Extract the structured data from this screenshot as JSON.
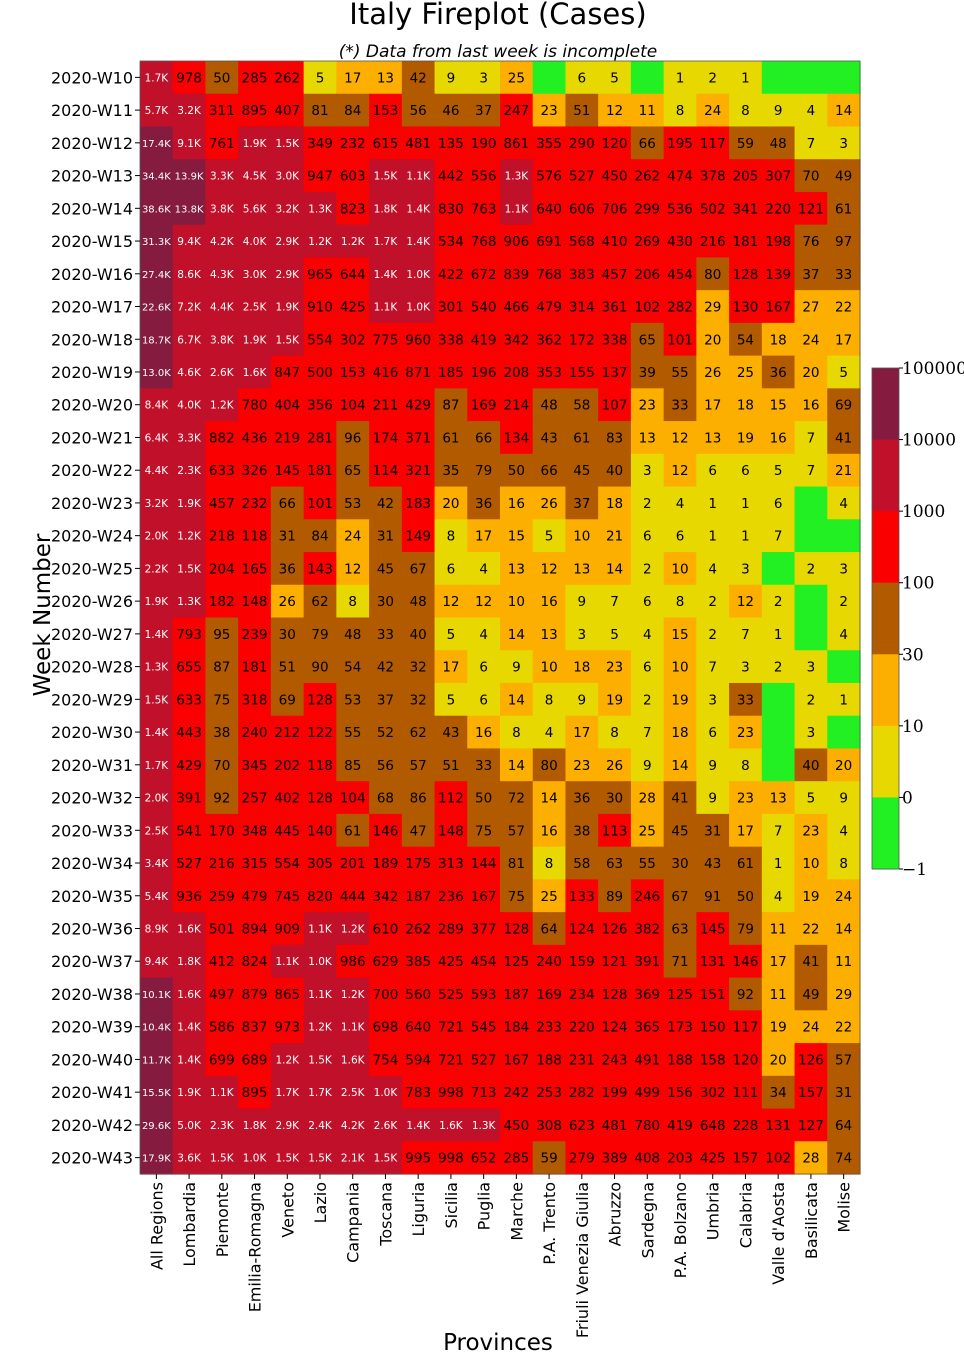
{
  "chart_data": {
    "type": "heatmap",
    "title": "Italy Fireplot (Cases)",
    "subtitle": "(*) Data from last week is incomplete",
    "xlabel": "Provinces",
    "ylabel": "Week Number",
    "columns": [
      "All Regions",
      "Lombardia",
      "Piemonte",
      "Emilia-Romagna",
      "Veneto",
      "Lazio",
      "Campania",
      "Toscana",
      "Liguria",
      "Sicilia",
      "Puglia",
      "Marche",
      "P.A. Trento",
      "Friuli Venezia Giulia",
      "Abruzzo",
      "Sardegna",
      "P.A. Bolzano",
      "Umbria",
      "Calabria",
      "Valle d'Aosta",
      "Basilicata",
      "Molise"
    ],
    "rows": [
      "2020-W10",
      "2020-W11",
      "2020-W12",
      "2020-W13",
      "2020-W14",
      "2020-W15",
      "2020-W16",
      "2020-W17",
      "2020-W18",
      "2020-W19",
      "2020-W20",
      "2020-W21",
      "2020-W22",
      "2020-W23",
      "2020-W24",
      "2020-W25",
      "2020-W26",
      "2020-W27",
      "2020-W28",
      "2020-W29",
      "2020-W30",
      "2020-W31",
      "2020-W32",
      "2020-W33",
      "2020-W34",
      "2020-W35",
      "2020-W36",
      "2020-W37",
      "2020-W38",
      "2020-W39",
      "2020-W40",
      "2020-W41",
      "2020-W42",
      "2020-W43"
    ],
    "cells": [
      [
        "1.7K",
        "978",
        "50",
        "285",
        "262",
        "5",
        "17",
        "13",
        "42",
        "9",
        "3",
        "25",
        "",
        "6",
        "5",
        "",
        "1",
        "2",
        "1",
        "",
        "",
        ""
      ],
      [
        "5.7K",
        "3.2K",
        "311",
        "895",
        "407",
        "81",
        "84",
        "153",
        "56",
        "46",
        "37",
        "247",
        "23",
        "51",
        "12",
        "11",
        "8",
        "24",
        "8",
        "9",
        "4",
        "14"
      ],
      [
        "17.4K",
        "9.1K",
        "761",
        "1.9K",
        "1.5K",
        "349",
        "232",
        "615",
        "481",
        "135",
        "190",
        "861",
        "355",
        "290",
        "120",
        "66",
        "195",
        "117",
        "59",
        "48",
        "7",
        "3"
      ],
      [
        "34.4K",
        "13.9K",
        "3.3K",
        "4.5K",
        "3.0K",
        "947",
        "603",
        "1.5K",
        "1.1K",
        "442",
        "556",
        "1.3K",
        "576",
        "527",
        "450",
        "262",
        "474",
        "378",
        "205",
        "307",
        "70",
        "49"
      ],
      [
        "38.6K",
        "13.8K",
        "3.8K",
        "5.6K",
        "3.2K",
        "1.3K",
        "823",
        "1.8K",
        "1.4K",
        "830",
        "763",
        "1.1K",
        "640",
        "606",
        "706",
        "299",
        "536",
        "502",
        "341",
        "220",
        "121",
        "61"
      ],
      [
        "31.3K",
        "9.4K",
        "4.2K",
        "4.0K",
        "2.9K",
        "1.2K",
        "1.2K",
        "1.7K",
        "1.4K",
        "534",
        "768",
        "906",
        "691",
        "568",
        "410",
        "269",
        "430",
        "216",
        "181",
        "198",
        "76",
        "97"
      ],
      [
        "27.4K",
        "8.6K",
        "4.3K",
        "3.0K",
        "2.9K",
        "965",
        "644",
        "1.4K",
        "1.0K",
        "422",
        "672",
        "839",
        "768",
        "383",
        "457",
        "206",
        "454",
        "80",
        "128",
        "139",
        "37",
        "33"
      ],
      [
        "22.6K",
        "7.2K",
        "4.4K",
        "2.5K",
        "1.9K",
        "910",
        "425",
        "1.1K",
        "1.0K",
        "301",
        "540",
        "466",
        "479",
        "314",
        "361",
        "102",
        "282",
        "29",
        "130",
        "167",
        "27",
        "22"
      ],
      [
        "18.7K",
        "6.7K",
        "3.8K",
        "1.9K",
        "1.5K",
        "554",
        "302",
        "775",
        "960",
        "338",
        "419",
        "342",
        "362",
        "172",
        "338",
        "65",
        "101",
        "20",
        "54",
        "18",
        "24",
        "17"
      ],
      [
        "13.0K",
        "4.6K",
        "2.6K",
        "1.6K",
        "847",
        "500",
        "153",
        "416",
        "871",
        "185",
        "196",
        "208",
        "353",
        "155",
        "137",
        "39",
        "55",
        "26",
        "25",
        "36",
        "20",
        "5"
      ],
      [
        "8.4K",
        "4.0K",
        "1.2K",
        "780",
        "404",
        "356",
        "104",
        "211",
        "429",
        "87",
        "169",
        "214",
        "48",
        "58",
        "107",
        "23",
        "33",
        "17",
        "18",
        "15",
        "16",
        "69"
      ],
      [
        "6.4K",
        "3.3K",
        "882",
        "436",
        "219",
        "281",
        "96",
        "174",
        "371",
        "61",
        "66",
        "134",
        "43",
        "61",
        "83",
        "13",
        "12",
        "13",
        "19",
        "16",
        "7",
        "41"
      ],
      [
        "4.4K",
        "2.3K",
        "633",
        "326",
        "145",
        "181",
        "65",
        "114",
        "321",
        "35",
        "79",
        "50",
        "66",
        "45",
        "40",
        "3",
        "12",
        "6",
        "6",
        "5",
        "7",
        "21"
      ],
      [
        "3.2K",
        "1.9K",
        "457",
        "232",
        "66",
        "101",
        "53",
        "42",
        "183",
        "20",
        "36",
        "16",
        "26",
        "37",
        "18",
        "2",
        "4",
        "1",
        "1",
        "6",
        "",
        "4"
      ],
      [
        "2.0K",
        "1.2K",
        "218",
        "118",
        "31",
        "84",
        "24",
        "31",
        "149",
        "8",
        "17",
        "15",
        "5",
        "10",
        "21",
        "6",
        "6",
        "1",
        "1",
        "7",
        "",
        ""
      ],
      [
        "2.2K",
        "1.5K",
        "204",
        "165",
        "36",
        "143",
        "12",
        "45",
        "67",
        "6",
        "4",
        "13",
        "12",
        "13",
        "14",
        "2",
        "10",
        "4",
        "3",
        "",
        "2",
        "3"
      ],
      [
        "1.9K",
        "1.3K",
        "182",
        "148",
        "26",
        "62",
        "8",
        "30",
        "48",
        "12",
        "12",
        "10",
        "16",
        "9",
        "7",
        "6",
        "8",
        "2",
        "12",
        "2",
        "",
        "2"
      ],
      [
        "1.4K",
        "793",
        "95",
        "239",
        "30",
        "79",
        "48",
        "33",
        "40",
        "5",
        "4",
        "14",
        "13",
        "3",
        "5",
        "4",
        "15",
        "2",
        "7",
        "1",
        "",
        "4"
      ],
      [
        "1.3K",
        "655",
        "87",
        "181",
        "51",
        "90",
        "54",
        "42",
        "32",
        "17",
        "6",
        "9",
        "10",
        "18",
        "23",
        "6",
        "10",
        "7",
        "3",
        "2",
        "3",
        ""
      ],
      [
        "1.5K",
        "633",
        "75",
        "318",
        "69",
        "128",
        "53",
        "37",
        "32",
        "5",
        "6",
        "14",
        "8",
        "9",
        "19",
        "2",
        "19",
        "3",
        "33",
        "",
        "2",
        "1"
      ],
      [
        "1.4K",
        "443",
        "38",
        "240",
        "212",
        "122",
        "55",
        "52",
        "62",
        "43",
        "16",
        "8",
        "4",
        "17",
        "8",
        "7",
        "18",
        "6",
        "23",
        "",
        "3",
        ""
      ],
      [
        "1.7K",
        "429",
        "70",
        "345",
        "202",
        "118",
        "85",
        "56",
        "57",
        "51",
        "33",
        "14",
        "80",
        "23",
        "26",
        "9",
        "14",
        "9",
        "8",
        "",
        "40",
        "20"
      ],
      [
        "2.0K",
        "391",
        "92",
        "257",
        "402",
        "128",
        "104",
        "68",
        "86",
        "112",
        "50",
        "72",
        "14",
        "36",
        "30",
        "28",
        "41",
        "9",
        "23",
        "13",
        "5",
        "9"
      ],
      [
        "2.5K",
        "541",
        "170",
        "348",
        "445",
        "140",
        "61",
        "146",
        "47",
        "148",
        "75",
        "57",
        "16",
        "38",
        "113",
        "25",
        "45",
        "31",
        "17",
        "7",
        "23",
        "4"
      ],
      [
        "3.4K",
        "527",
        "216",
        "315",
        "554",
        "305",
        "201",
        "189",
        "175",
        "313",
        "144",
        "81",
        "8",
        "58",
        "63",
        "55",
        "30",
        "43",
        "61",
        "1",
        "10",
        "8"
      ],
      [
        "5.4K",
        "936",
        "259",
        "479",
        "745",
        "820",
        "444",
        "342",
        "187",
        "236",
        "167",
        "75",
        "25",
        "133",
        "89",
        "246",
        "67",
        "91",
        "50",
        "4",
        "19",
        "24"
      ],
      [
        "8.9K",
        "1.6K",
        "501",
        "894",
        "909",
        "1.1K",
        "1.2K",
        "610",
        "262",
        "289",
        "377",
        "128",
        "64",
        "124",
        "126",
        "382",
        "63",
        "145",
        "79",
        "11",
        "22",
        "14"
      ],
      [
        "9.4K",
        "1.8K",
        "412",
        "824",
        "1.1K",
        "1.0K",
        "986",
        "629",
        "385",
        "425",
        "454",
        "125",
        "240",
        "159",
        "121",
        "391",
        "71",
        "131",
        "146",
        "17",
        "41",
        "11"
      ],
      [
        "10.1K",
        "1.6K",
        "497",
        "879",
        "865",
        "1.1K",
        "1.2K",
        "700",
        "560",
        "525",
        "593",
        "187",
        "169",
        "234",
        "128",
        "369",
        "125",
        "151",
        "92",
        "11",
        "49",
        "29"
      ],
      [
        "10.4K",
        "1.4K",
        "586",
        "837",
        "973",
        "1.2K",
        "1.1K",
        "698",
        "640",
        "721",
        "545",
        "184",
        "233",
        "220",
        "124",
        "365",
        "173",
        "150",
        "117",
        "19",
        "24",
        "22"
      ],
      [
        "11.7K",
        "1.4K",
        "699",
        "689",
        "1.2K",
        "1.5K",
        "1.6K",
        "754",
        "594",
        "721",
        "527",
        "167",
        "188",
        "231",
        "243",
        "491",
        "188",
        "158",
        "120",
        "20",
        "126",
        "57"
      ],
      [
        "15.5K",
        "1.9K",
        "1.1K",
        "895",
        "1.7K",
        "1.7K",
        "2.5K",
        "1.0K",
        "783",
        "998",
        "713",
        "242",
        "253",
        "282",
        "199",
        "499",
        "156",
        "302",
        "111",
        "34",
        "157",
        "31"
      ],
      [
        "29.6K",
        "5.0K",
        "2.3K",
        "1.8K",
        "2.9K",
        "2.4K",
        "4.2K",
        "2.6K",
        "1.4K",
        "1.6K",
        "1.3K",
        "450",
        "308",
        "623",
        "481",
        "780",
        "419",
        "648",
        "228",
        "131",
        "127",
        "64"
      ],
      [
        "17.9K",
        "3.6K",
        "1.5K",
        "1.0K",
        "1.5K",
        "1.5K",
        "2.1K",
        "1.5K",
        "995",
        "998",
        "652",
        "285",
        "59",
        "279",
        "389",
        "408",
        "203",
        "425",
        "157",
        "102",
        "28",
        "74"
      ]
    ],
    "colorbar": {
      "scale": "symlog",
      "ticks": [
        "100000",
        "10000",
        "1000",
        "100",
        "30",
        "10",
        "0",
        "−1"
      ],
      "bins": [
        {
          "min": 10000,
          "color": "#851c40"
        },
        {
          "min": 1000,
          "color": "#c0102a"
        },
        {
          "min": 100,
          "color": "#fa0000"
        },
        {
          "min": 30,
          "color": "#b25a00"
        },
        {
          "min": 10,
          "color": "#fdaf00"
        },
        {
          "min": 0,
          "color": "#e6d800"
        },
        {
          "min": -1,
          "color": "#22f022"
        }
      ]
    }
  }
}
